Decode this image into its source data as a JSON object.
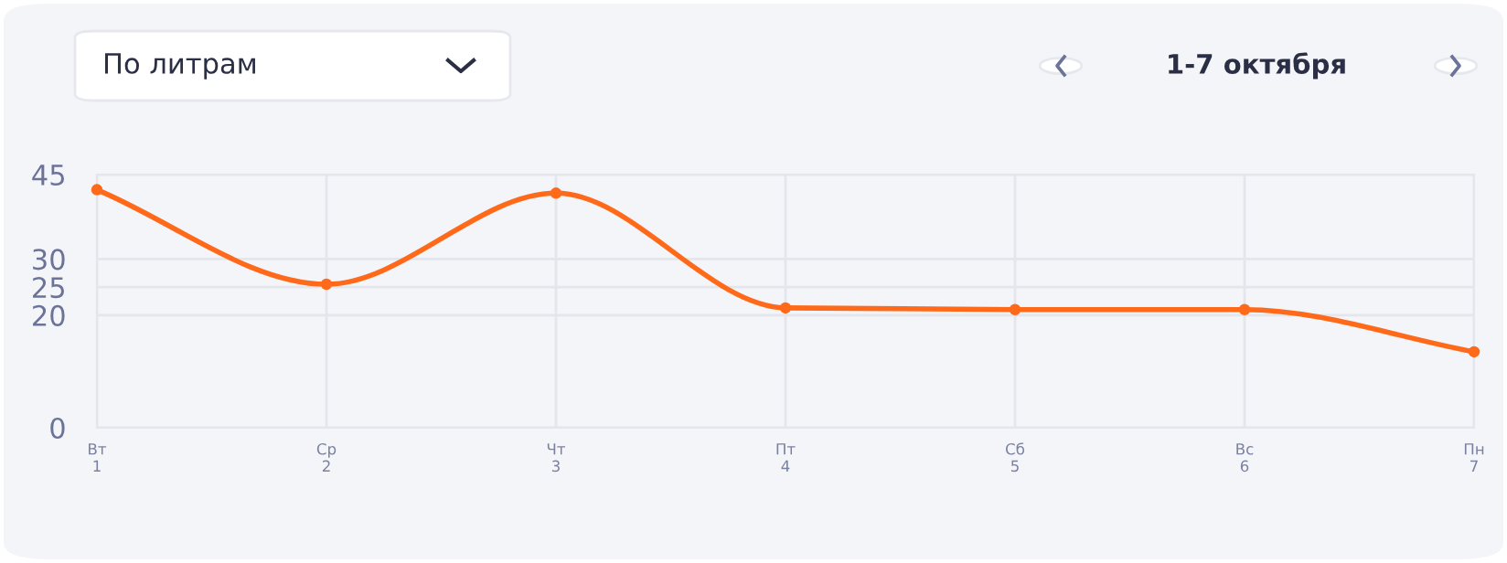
{
  "chart_data": {
    "type": "line",
    "categories": [
      "Вт\n1",
      "Ср\n2",
      "Чт\n3",
      "Пт\n4",
      "Сб\n5",
      "Вс\n6",
      "Пн\n7"
    ],
    "series": [
      {
        "color": "#ff6a1a",
        "values": [
          42.3,
          25.5,
          41.7,
          21.3,
          21.0,
          21.0,
          13.5
        ]
      }
    ],
    "ylim": [
      0,
      45
    ],
    "yticks": [
      0,
      20,
      25,
      30,
      45
    ],
    "grid": true,
    "legend": false,
    "marker": "circle",
    "line_style": "solid",
    "annotations": [
      "По литрам",
      "1-7 октября"
    ]
  }
}
